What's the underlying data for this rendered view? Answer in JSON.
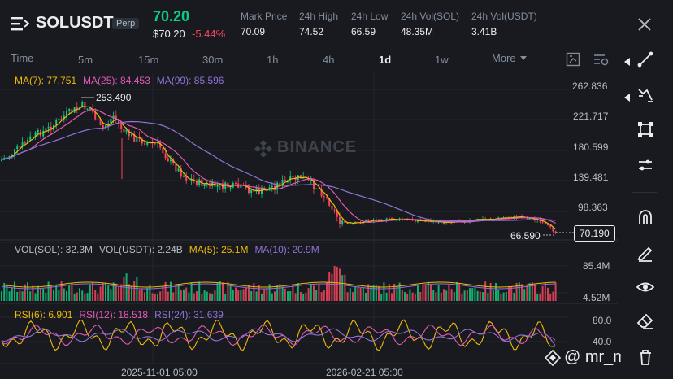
{
  "header": {
    "symbol": "SOLUSDT",
    "badge": "Perp",
    "last_price": "70.20",
    "last_price_usd": "$70.20",
    "change_pct": "-5.44%",
    "stats": [
      {
        "label": "Mark Price",
        "value": "70.09"
      },
      {
        "label": "24h High",
        "value": "74.52"
      },
      {
        "label": "24h Low",
        "value": "66.59"
      },
      {
        "label": "24h Vol(SOL)",
        "value": "48.35M"
      },
      {
        "label": "24h Vol(USDT)",
        "value": "3.41B"
      }
    ]
  },
  "timeframes": [
    {
      "label": "Time",
      "active": false
    },
    {
      "label": "5m",
      "active": false
    },
    {
      "label": "15m",
      "active": false
    },
    {
      "label": "30m",
      "active": false
    },
    {
      "label": "1h",
      "active": false
    },
    {
      "label": "4h",
      "active": false
    },
    {
      "label": "1d",
      "active": true
    },
    {
      "label": "1w",
      "active": false
    },
    {
      "label": "More",
      "active": false
    }
  ],
  "colors": {
    "up": "#0ecb81",
    "down": "#f6465d",
    "ma7": "#f0b90b",
    "ma25": "#e15ab5",
    "ma99": "#8f74d6",
    "bg": "#181a20"
  },
  "main_legend": {
    "ma7": "MA(7): 77.751",
    "ma25": "MA(25): 84.453",
    "ma99": "MA(99): 85.596"
  },
  "price_axis": [
    "262.836",
    "221.717",
    "180.599",
    "139.481",
    "98.363"
  ],
  "price_tag": "70.190",
  "high_label": "253.490",
  "low_label": "66.590",
  "watermark": "BINANCE",
  "vol_legend": {
    "vol_sol": "VOL(SOL): 32.3M",
    "vol_usdt": "VOL(USDT): 2.24B",
    "ma5": "MA(5): 25.1M",
    "ma10": "MA(10): 20.9M"
  },
  "vol_axis": [
    "85.4M",
    "4.52M"
  ],
  "rsi_legend": {
    "rsi6": "RSI(6): 6.901",
    "rsi12": "RSI(12): 18.518",
    "rsi24": "RSI(24): 31.639"
  },
  "rsi_axis": [
    "80.0",
    "40.0"
  ],
  "date_axis": [
    "2025-11-01 05:00",
    "2026-02-21 05:00"
  ],
  "user_watermark": "@ mr_mee",
  "tools": [
    "trendline-icon",
    "fib-icon",
    "pattern-icon",
    "parallel-icon",
    "magnet-icon",
    "pencil-icon",
    "eye-icon",
    "eraser-icon"
  ]
}
